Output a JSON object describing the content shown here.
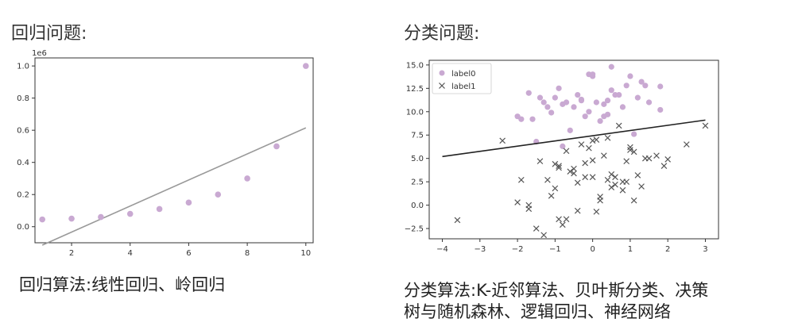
{
  "headings": {
    "regression": "回归问题:",
    "classification": "分类问题:"
  },
  "captions": {
    "regression": "回归算法:线性回归、岭回归",
    "classification_line1": "分类算法:K-近邻算法、贝叶斯分类、决策",
    "classification_line2": "树与随机森林、逻辑回归、神经网络"
  },
  "chart_data": [
    {
      "type": "scatter",
      "title": "",
      "xlabel": "",
      "ylabel": "",
      "y_scale_label": "1e6",
      "xlim": [
        0.75,
        10.25
      ],
      "ylim": [
        -0.1,
        1.05
      ],
      "xticks": [
        2,
        4,
        6,
        8,
        10
      ],
      "xtick_labels": [
        "2",
        "4",
        "6",
        "8",
        "10"
      ],
      "yticks": [
        0.0,
        0.2,
        0.4,
        0.6,
        0.8,
        1.0
      ],
      "ytick_labels": [
        "0.0",
        "0.2",
        "0.4",
        "0.6",
        "0.8",
        "1.0"
      ],
      "grid": false,
      "point_color": "#c9a9d2",
      "fit_line_color": "#999999",
      "series": [
        {
          "x": [
            1,
            2,
            3,
            4,
            5,
            6,
            7,
            8,
            9,
            10
          ],
          "y": [
            0.045,
            0.05,
            0.06,
            0.08,
            0.11,
            0.15,
            0.2,
            0.3,
            0.5,
            1.0
          ]
        }
      ],
      "fit_line": {
        "x": [
          1,
          10
        ],
        "y": [
          -0.115,
          0.615
        ]
      }
    },
    {
      "type": "scatter",
      "title": "",
      "xlabel": "",
      "ylabel": "",
      "xlim": [
        -4.35,
        3.35
      ],
      "ylim": [
        -3.6,
        15.5
      ],
      "xticks": [
        -4,
        -3,
        -2,
        -1,
        0,
        1,
        2,
        3
      ],
      "xtick_labels": [
        "−4",
        "−3",
        "−2",
        "−1",
        "0",
        "1",
        "2",
        "3"
      ],
      "yticks": [
        -2.5,
        0.0,
        2.5,
        5.0,
        7.5,
        10.0,
        12.5,
        15.0
      ],
      "ytick_labels": [
        "−2.5",
        "0.0",
        "2.5",
        "5.0",
        "7.5",
        "10.0",
        "12.5",
        "15.0"
      ],
      "grid": false,
      "legend_position": "top-left",
      "boundary_color": "#222222",
      "series": [
        {
          "name": "label0",
          "marker": "circle",
          "color": "#c9a9d2",
          "x": [
            -1.7,
            -1.4,
            -1.2,
            -1.0,
            -0.9,
            -0.7,
            -0.5,
            -0.3,
            -0.1,
            0.0,
            0.1,
            0.3,
            0.4,
            0.5,
            0.6,
            0.8,
            1.0,
            1.2,
            1.4,
            1.8,
            -1.6,
            -1.1,
            -0.8,
            -0.6,
            -0.2,
            0.2,
            0.5,
            0.9,
            1.3,
            -1.3,
            -0.4,
            0.7,
            1.5,
            1.8,
            -0.1,
            0.3,
            -2.0,
            -1.9,
            -1.5,
            0.0,
            -0.3,
            1.1,
            0.4,
            -0.8
          ],
          "y": [
            12.0,
            11.5,
            10.5,
            11.5,
            12.5,
            11.0,
            10.5,
            11.2,
            14.0,
            13.8,
            11.0,
            10.8,
            9.7,
            12.3,
            11.8,
            10.5,
            13.8,
            11.5,
            12.8,
            10.2,
            9.2,
            9.9,
            10.8,
            8.0,
            9.5,
            9.0,
            14.8,
            12.8,
            13.2,
            11.0,
            11.8,
            11.8,
            11.0,
            12.7,
            10.0,
            9.5,
            9.5,
            9.2,
            6.8,
            14.0,
            11.3,
            7.6,
            11.2,
            6.3
          ]
        },
        {
          "name": "label1",
          "marker": "x",
          "color": "#555555",
          "x": [
            -3.6,
            -2.4,
            -2.0,
            -1.9,
            -1.7,
            -1.4,
            -1.2,
            -1.0,
            -0.9,
            -0.8,
            -0.7,
            -0.6,
            -0.5,
            -0.4,
            -0.3,
            -0.2,
            -0.1,
            0.0,
            0.1,
            0.2,
            0.3,
            0.4,
            0.5,
            0.6,
            0.7,
            0.8,
            0.9,
            1.0,
            1.1,
            1.2,
            1.3,
            1.5,
            1.7,
            1.9,
            2.0,
            2.5,
            3.0,
            -1.5,
            -1.3,
            -1.0,
            -0.9,
            -0.7,
            -0.2,
            0.0,
            0.1,
            0.2,
            0.4,
            0.6,
            1.0,
            1.4,
            -1.7,
            -1.1,
            -0.4,
            0.8,
            1.1,
            -0.9,
            -0.5,
            0.0,
            0.5,
            0.9
          ],
          "y": [
            -1.6,
            6.9,
            0.3,
            2.7,
            -0.4,
            4.7,
            2.7,
            4.4,
            -1.5,
            -2.1,
            5.8,
            3.6,
            3.4,
            -0.6,
            6.5,
            3.0,
            6.1,
            3.0,
            7.0,
            0.9,
            5.3,
            7.2,
            1.9,
            3.0,
            8.5,
            2.5,
            4.7,
            5.9,
            0.5,
            3.2,
            2.0,
            5.0,
            5.3,
            4.2,
            4.9,
            6.5,
            8.5,
            -2.5,
            -3.2,
            1.8,
            4.0,
            -1.5,
            4.5,
            4.8,
            -0.7,
            0.5,
            2.7,
            2.2,
            6.2,
            5.0,
            0.0,
            1.0,
            2.4,
            1.6,
            5.7,
            4.2,
            3.9,
            6.9,
            3.3,
            2.5
          ]
        }
      ],
      "decision_boundary": {
        "x": [
          -4.0,
          3.0
        ],
        "y": [
          5.2,
          9.1
        ]
      }
    }
  ]
}
